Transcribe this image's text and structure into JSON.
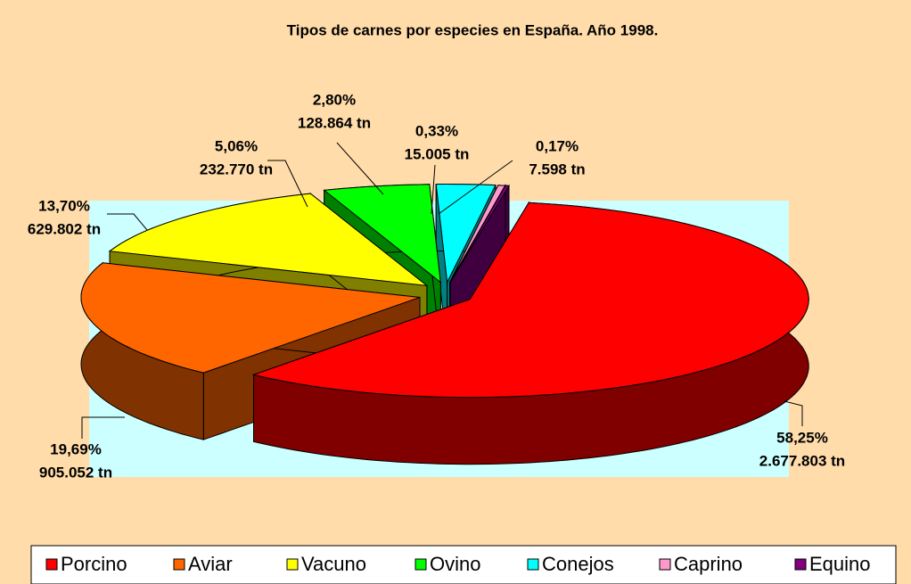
{
  "chart_data": {
    "type": "pie",
    "title": "Tipos de carnes por especies en España. Año 1998.",
    "categories": [
      "Porcino",
      "Aviar",
      "Vacuno",
      "Ovino",
      "Conejos",
      "Caprino",
      "Equino"
    ],
    "values": [
      58.25,
      19.69,
      13.7,
      5.06,
      2.8,
      0.33,
      0.17
    ],
    "value_labels": [
      "58,25%",
      "19,69%",
      "13,70%",
      "5,06%",
      "2,80%",
      "0,33%",
      "0,17%"
    ],
    "tonnage_labels": [
      "2.677.803 tn",
      "905.052 tn",
      "629.802 tn",
      "232.770 tn",
      "128.864 tn",
      "15.005 tn",
      "7.598 tn"
    ],
    "colors": [
      "#ff0000",
      "#ff6600",
      "#ffff00",
      "#00ff00",
      "#00ffff",
      "#ff99cc",
      "#800080"
    ],
    "legend": "bottom"
  }
}
